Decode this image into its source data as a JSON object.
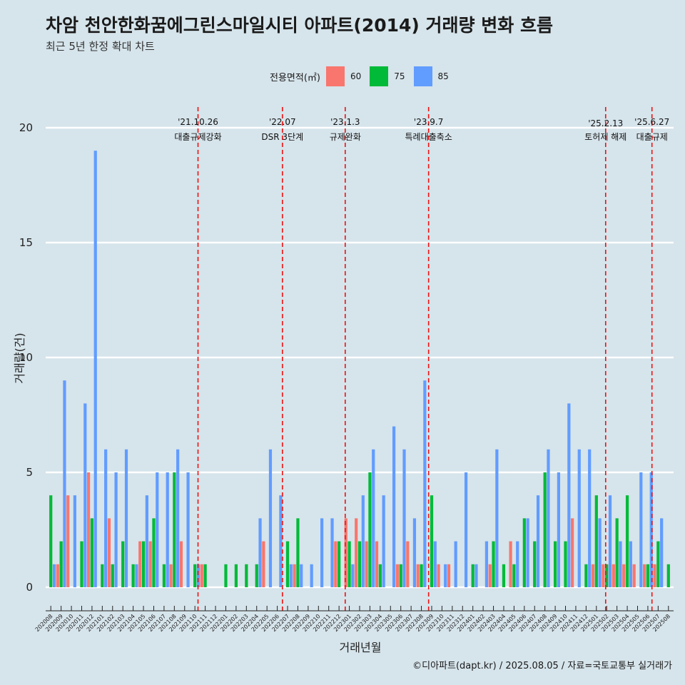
{
  "header": {
    "title": "차암 천안한화꿈에그린스마일시티 아파트(2014) 거래량 변화 흐름",
    "subtitle": "최근 5년 한정 확대 차트"
  },
  "legend": {
    "title": "전용면적(㎡)",
    "items": [
      {
        "label": "60",
        "color": "#f8766d"
      },
      {
        "label": "75",
        "color": "#00ba38"
      },
      {
        "label": "85",
        "color": "#619cff"
      }
    ]
  },
  "caption": "©디아파트(dapt.kr) / 2025.08.05 / 자료=국토교통부 실거래가",
  "chart_data": {
    "type": "bar",
    "xlabel": "거래년월",
    "ylabel": "거래량(건)",
    "ylim": [
      0,
      20
    ],
    "yticks": [
      0,
      5,
      10,
      15,
      20
    ],
    "grid": true,
    "legend_position": "top",
    "categories": [
      "202008",
      "202009",
      "202010",
      "202011",
      "202012",
      "202101",
      "202102",
      "202103",
      "202104",
      "202105",
      "202106",
      "202107",
      "202108",
      "202109",
      "202110",
      "202111",
      "202112",
      "202201",
      "202202",
      "202203",
      "202204",
      "202205",
      "202206",
      "202207",
      "202208",
      "202209",
      "202210",
      "202211",
      "202212",
      "202301",
      "202302",
      "202303",
      "202304",
      "202305",
      "202306",
      "202307",
      "202308",
      "202309",
      "202310",
      "202311",
      "202312",
      "202401",
      "202402",
      "202403",
      "202404",
      "202405",
      "202406",
      "202407",
      "202408",
      "202409",
      "202410",
      "202411",
      "202412",
      "202501",
      "202502",
      "202503",
      "202504",
      "202505",
      "202506",
      "202507",
      "202508"
    ],
    "series": [
      {
        "name": "60",
        "color": "#f8766d",
        "values": [
          null,
          1,
          4,
          null,
          5,
          null,
          3,
          null,
          null,
          2,
          2,
          null,
          1,
          2,
          null,
          1,
          null,
          null,
          null,
          null,
          null,
          2,
          null,
          null,
          1,
          null,
          null,
          null,
          2,
          3,
          3,
          2,
          2,
          null,
          1,
          2,
          1,
          null,
          1,
          1,
          null,
          null,
          null,
          1,
          null,
          2,
          null,
          null,
          null,
          null,
          null,
          3,
          null,
          1,
          1,
          1,
          1,
          1,
          1,
          1,
          null
        ]
      },
      {
        "name": "75",
        "color": "#00ba38",
        "values": [
          4,
          2,
          null,
          2,
          3,
          1,
          1,
          2,
          1,
          2,
          3,
          1,
          5,
          null,
          1,
          1,
          null,
          1,
          1,
          1,
          1,
          null,
          null,
          2,
          3,
          null,
          null,
          null,
          2,
          2,
          2,
          5,
          1,
          null,
          1,
          null,
          1,
          4,
          null,
          null,
          null,
          1,
          null,
          2,
          1,
          1,
          3,
          2,
          5,
          2,
          2,
          null,
          1,
          4,
          1,
          3,
          4,
          null,
          1,
          2,
          1
        ]
      },
      {
        "name": "85",
        "color": "#619cff",
        "values": [
          1,
          9,
          4,
          8,
          19,
          6,
          5,
          6,
          1,
          4,
          5,
          5,
          6,
          5,
          1,
          null,
          null,
          null,
          null,
          null,
          3,
          6,
          4,
          1,
          1,
          1,
          3,
          3,
          null,
          1,
          4,
          6,
          4,
          7,
          6,
          3,
          9,
          2,
          1,
          2,
          5,
          1,
          2,
          6,
          null,
          2,
          3,
          4,
          6,
          5,
          8,
          6,
          6,
          3,
          4,
          2,
          2,
          5,
          5,
          3,
          null
        ]
      }
    ],
    "annotations": [
      {
        "date": "'21.10.26",
        "text": "대출규제강화",
        "x_index": 14.8
      },
      {
        "date": "'22.07",
        "text": "DSR 3단계",
        "x_index": 23.0
      },
      {
        "date": "'23.1.3",
        "text": "규제완화",
        "x_index": 29.1
      },
      {
        "date": "'23.9.7",
        "text": "특례대출축소",
        "x_index": 37.2
      },
      {
        "date": "'25.2.13",
        "text": "토허제 해제",
        "x_index": 54.4
      },
      {
        "date": "'25.6.27",
        "text": "대출규제",
        "x_index": 58.9
      }
    ]
  }
}
